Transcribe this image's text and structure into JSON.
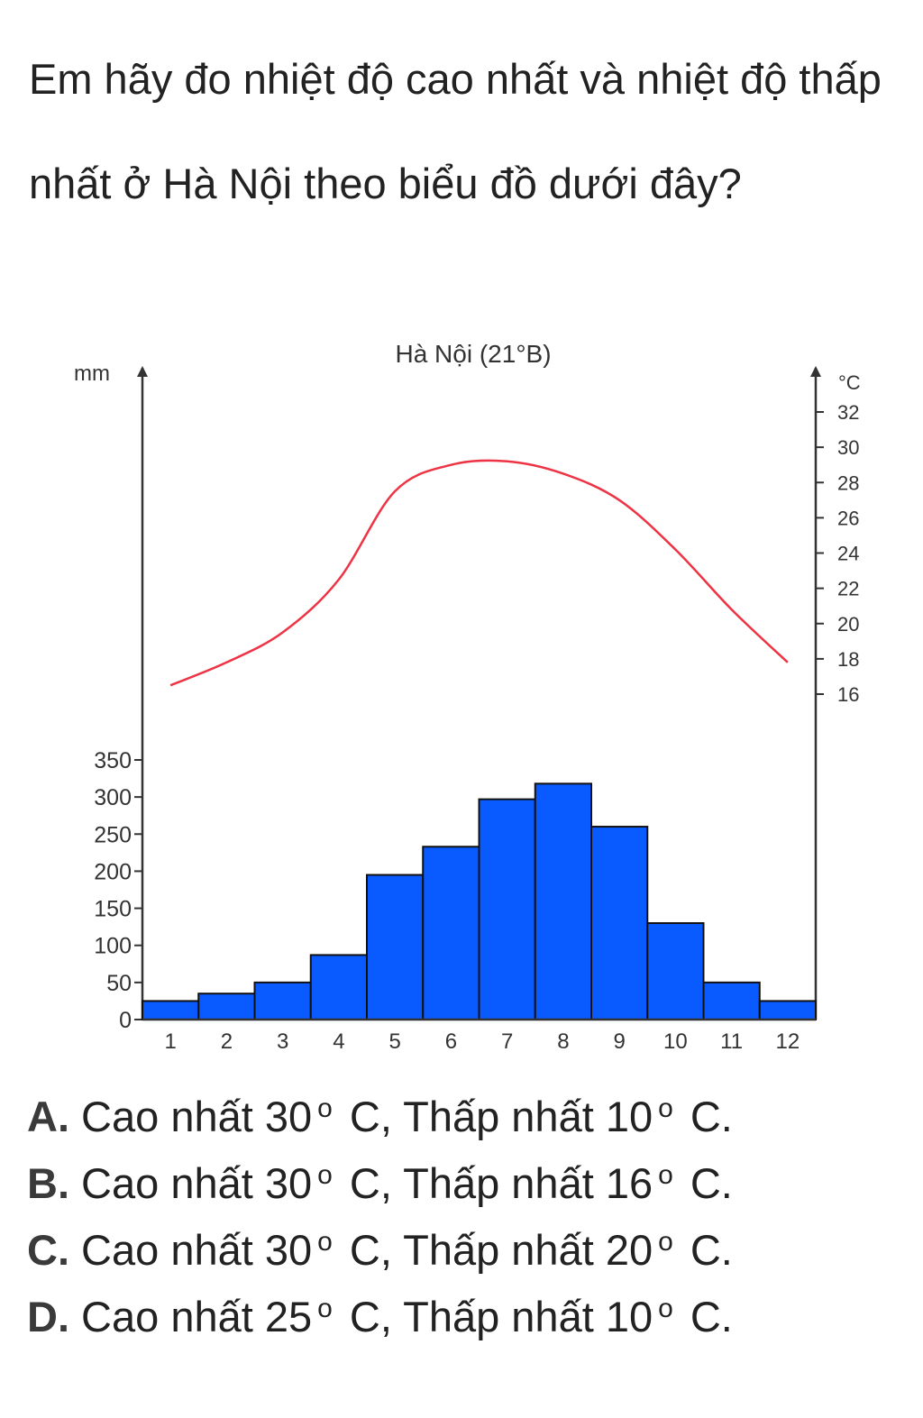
{
  "question": {
    "text": "Em hãy đo nhiệt độ cao nhất và nhiệt độ thấp nhất ở Hà Nội theo biểu đồ dưới đây?"
  },
  "chart_data": {
    "type": "bar+line",
    "title": "Hà Nội (21°B)",
    "left_axis": {
      "unit": "mm",
      "ylim": [
        0,
        350
      ],
      "ticks": [
        0,
        50,
        100,
        150,
        200,
        250,
        300,
        350
      ]
    },
    "right_axis": {
      "unit": "°C",
      "ticks": [
        16,
        18,
        20,
        22,
        24,
        26,
        28,
        30,
        32
      ]
    },
    "categories": [
      "1",
      "2",
      "3",
      "4",
      "5",
      "6",
      "7",
      "8",
      "9",
      "10",
      "11",
      "12"
    ],
    "series": [
      {
        "kind": "bar",
        "axis": "left",
        "values": [
          25,
          35,
          50,
          87,
          195,
          233,
          297,
          318,
          260,
          130,
          50,
          25
        ]
      },
      {
        "kind": "line",
        "axis": "right",
        "values": [
          16.5,
          17.8,
          19.5,
          22.5,
          27.5,
          29.0,
          29.2,
          28.5,
          27.0,
          24.2,
          20.8,
          17.8
        ]
      }
    ],
    "colors": {
      "bars": "#0a5bff",
      "bar_edge": "#111111",
      "line": "#ee3344",
      "axis": "#333333"
    },
    "grid": false
  },
  "options": [
    {
      "letter": "A.",
      "text_before": " Cao nhất 30",
      "deg": "o",
      "text_after": " C, Thấp nhất 10",
      "deg2": "o",
      "end": " C."
    },
    {
      "letter": "B.",
      "text_before": " Cao nhất 30",
      "deg": "o",
      "text_after": " C, Thấp nhất 16",
      "deg2": "o",
      "end": " C."
    },
    {
      "letter": "C.",
      "text_before": " Cao nhất 30",
      "deg": "o",
      "text_after": " C, Thấp nhất 20",
      "deg2": "o",
      "end": " C."
    },
    {
      "letter": "D.",
      "text_before": " Cao nhất 25",
      "deg": "o",
      "text_after": " C, Thấp nhất 10",
      "deg2": "o",
      "end": " C."
    }
  ]
}
